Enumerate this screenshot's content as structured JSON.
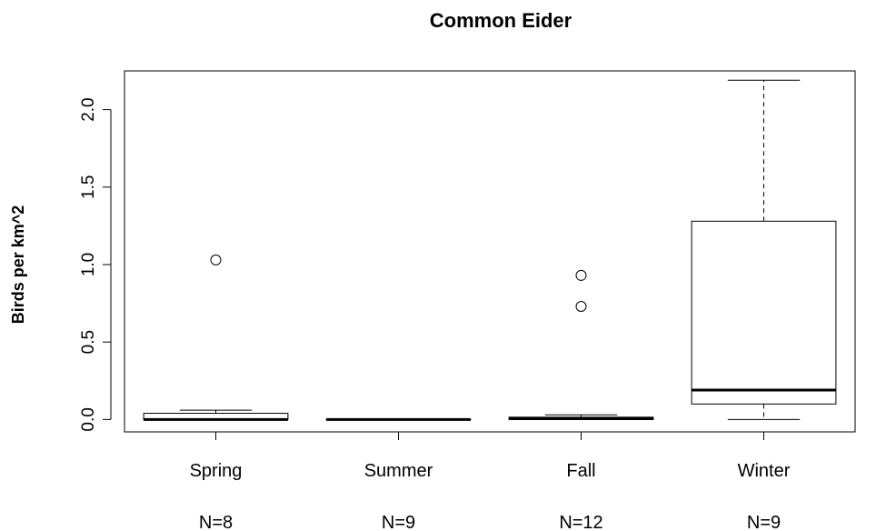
{
  "chart_data": {
    "type": "boxplot",
    "title": "Common Eider",
    "xlabel": "",
    "ylabel": "Birds per km^2",
    "ylim": [
      -0.08,
      2.25
    ],
    "yticks": [
      0.0,
      0.5,
      1.0,
      1.5,
      2.0
    ],
    "ytick_labels": [
      "0.0",
      "0.5",
      "1.0",
      "1.5",
      "2.0"
    ],
    "categories": [
      "Spring",
      "Summer",
      "Fall",
      "Winter"
    ],
    "sample_size_labels": [
      "N=8",
      "N=9",
      "N=12",
      "N=9"
    ],
    "boxes": [
      {
        "category": "Spring",
        "whisker_low": 0.0,
        "q1": 0.0,
        "median": 0.0,
        "q3": 0.04,
        "whisker_high": 0.06,
        "outliers": [
          1.03
        ]
      },
      {
        "category": "Summer",
        "whisker_low": 0.0,
        "q1": 0.0,
        "median": 0.0,
        "q3": 0.0,
        "whisker_high": 0.0,
        "outliers": []
      },
      {
        "category": "Fall",
        "whisker_low": 0.0,
        "q1": 0.0,
        "median": 0.005,
        "q3": 0.015,
        "whisker_high": 0.03,
        "outliers": [
          0.73,
          0.93
        ]
      },
      {
        "category": "Winter",
        "whisker_low": 0.0,
        "q1": 0.1,
        "median": 0.19,
        "q3": 1.28,
        "whisker_high": 2.19,
        "outliers": []
      }
    ],
    "grid": false,
    "frame": true
  }
}
